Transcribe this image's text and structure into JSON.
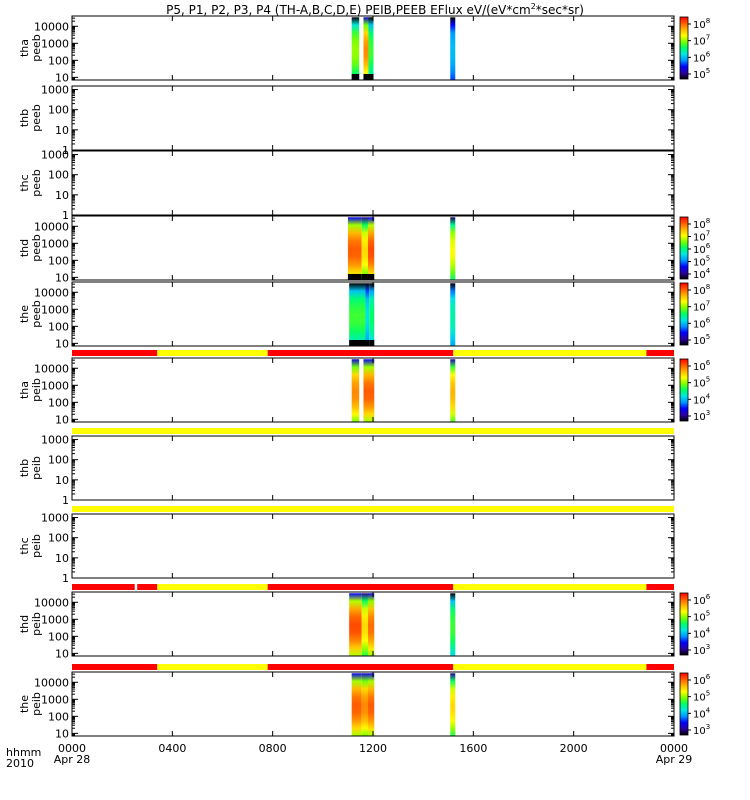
{
  "title": "P5, P1, P2, P3, P4 (TH-A,B,C,D,E) PEIB,PEEB EFlux eV/(eV*cm",
  "title_sup": "2",
  "title_tail": "*sec*sr)",
  "chart_data": {
    "type": "heatmap",
    "time_axis": {
      "row_label_top": "hhmm",
      "row_label_bottom": "2010",
      "range_hours": [
        0,
        24
      ],
      "ticks": [
        {
          "hour": 0,
          "label": "0000",
          "sub": "Apr 28"
        },
        {
          "hour": 4,
          "label": "0400",
          "sub": ""
        },
        {
          "hour": 8,
          "label": "0800",
          "sub": ""
        },
        {
          "hour": 12,
          "label": "1200",
          "sub": ""
        },
        {
          "hour": 16,
          "label": "1600",
          "sub": ""
        },
        {
          "hour": 20,
          "label": "2000",
          "sub": ""
        },
        {
          "hour": 24,
          "label": "0000",
          "sub": "Apr 29"
        }
      ]
    },
    "colormap": [
      "#000000",
      "#2b00a6",
      "#0000ff",
      "#0096ff",
      "#00e6e6",
      "#00ff64",
      "#7dff00",
      "#ffff00",
      "#ffb400",
      "#ff5a00",
      "#ff0000"
    ],
    "mode_bar_colors": {
      "fast": "#ff0000",
      "slow": "#ffff00"
    },
    "panels": [
      {
        "id": "tha-peeb",
        "label_line1": "tha",
        "label_line2": "peeb",
        "yrange": [
          7,
          40000
        ],
        "yticks": [
          {
            "v": 10,
            "label": "10"
          },
          {
            "v": 100,
            "label": "100"
          },
          {
            "v": 1000,
            "label": "1000"
          },
          {
            "v": 10000,
            "label": "10000"
          }
        ],
        "colorbar": {
          "labels": [
            "10",
            "10",
            "10",
            "10"
          ],
          "exponents": [
            "8",
            "7",
            "6",
            "5"
          ]
        },
        "mode_bar": null,
        "spectra": [
          {
            "t0": 11.15,
            "t1": 11.45,
            "top": 0.98,
            "intensity": 0.62,
            "lowband": true
          },
          {
            "t0": 11.62,
            "t1": 11.82,
            "top": 0.98,
            "intensity": 0.85,
            "lowband": true
          },
          {
            "t0": 11.82,
            "t1": 12.02,
            "top": 0.98,
            "intensity": 0.55,
            "lowband": true
          },
          {
            "t0": 15.08,
            "t1": 15.28,
            "top": 0.98,
            "intensity": 0.35,
            "lowband": false
          }
        ]
      },
      {
        "id": "thb-peeb",
        "label_line1": "thb",
        "label_line2": "peeb",
        "yrange": [
          1,
          1500
        ],
        "yticks": [
          {
            "v": 1,
            "label": "1"
          },
          {
            "v": 10,
            "label": "10"
          },
          {
            "v": 100,
            "label": "100"
          },
          {
            "v": 1000,
            "label": "1000"
          }
        ],
        "colorbar": null,
        "mode_bar": null,
        "spectra": []
      },
      {
        "id": "thc-peeb",
        "label_line1": "thc",
        "label_line2": "peeb",
        "yrange": [
          1,
          1500
        ],
        "yticks": [
          {
            "v": 1,
            "label": "1"
          },
          {
            "v": 10,
            "label": "10"
          },
          {
            "v": 100,
            "label": "100"
          },
          {
            "v": 1000,
            "label": "1000"
          }
        ],
        "colorbar": null,
        "mode_bar": null,
        "spectra": []
      },
      {
        "id": "thd-peeb",
        "label_line1": "thd",
        "label_line2": "peeb",
        "yrange": [
          7,
          40000
        ],
        "yticks": [
          {
            "v": 10,
            "label": "10"
          },
          {
            "v": 100,
            "label": "100"
          },
          {
            "v": 1000,
            "label": "1000"
          },
          {
            "v": 10000,
            "label": "10000"
          }
        ],
        "colorbar": {
          "labels": [
            "10",
            "10",
            "10",
            "10",
            "10"
          ],
          "exponents": [
            "8",
            "7",
            "6",
            "5",
            "4"
          ]
        },
        "mode_bar": null,
        "spectra": [
          {
            "t0": 11.0,
            "t1": 11.55,
            "top": 0.98,
            "intensity": 0.9,
            "lowband": true
          },
          {
            "t0": 11.55,
            "t1": 11.8,
            "top": 0.98,
            "intensity": 0.75,
            "lowband": true
          },
          {
            "t0": 11.8,
            "t1": 12.05,
            "top": 0.98,
            "intensity": 0.92,
            "lowband": true
          },
          {
            "t0": 15.08,
            "t1": 15.28,
            "top": 0.98,
            "intensity": 0.7,
            "lowband": false
          }
        ]
      },
      {
        "id": "the-peeb",
        "label_line1": "the",
        "label_line2": "peeb",
        "yrange": [
          7,
          40000
        ],
        "yticks": [
          {
            "v": 10,
            "label": "10"
          },
          {
            "v": 100,
            "label": "100"
          },
          {
            "v": 1000,
            "label": "1000"
          },
          {
            "v": 10000,
            "label": "10000"
          }
        ],
        "colorbar": {
          "labels": [
            "10",
            "10",
            "10",
            "10"
          ],
          "exponents": [
            "8",
            "7",
            "6",
            "5"
          ]
        },
        "mode_bar": null,
        "spectra": [
          {
            "t0": 11.05,
            "t1": 11.7,
            "top": 0.98,
            "intensity": 0.55,
            "lowband": true
          },
          {
            "t0": 11.7,
            "t1": 11.85,
            "top": 0.98,
            "intensity": 0.4,
            "lowband": true
          },
          {
            "t0": 11.85,
            "t1": 12.05,
            "top": 0.98,
            "intensity": 0.5,
            "lowband": true
          },
          {
            "t0": 15.08,
            "t1": 15.28,
            "top": 0.98,
            "intensity": 0.45,
            "lowband": false
          }
        ]
      },
      {
        "id": "tha-peib",
        "label_line1": "tha",
        "label_line2": "peib",
        "yrange": [
          7,
          40000
        ],
        "yticks": [
          {
            "v": 10,
            "label": "10"
          },
          {
            "v": 100,
            "label": "100"
          },
          {
            "v": 1000,
            "label": "1000"
          },
          {
            "v": 10000,
            "label": "10000"
          }
        ],
        "colorbar": {
          "labels": [
            "10",
            "10",
            "10",
            "10"
          ],
          "exponents": [
            "6",
            "5",
            "4",
            "3"
          ]
        },
        "mode_bar": [
          {
            "t0": 0,
            "t1": 3.4,
            "mode": "fast"
          },
          {
            "t0": 3.4,
            "t1": 7.8,
            "mode": "slow"
          },
          {
            "t0": 7.8,
            "t1": 15.2,
            "mode": "fast"
          },
          {
            "t0": 15.2,
            "t1": 22.9,
            "mode": "slow"
          },
          {
            "t0": 22.9,
            "t1": 24,
            "mode": "fast"
          }
        ],
        "spectra": [
          {
            "t0": 11.15,
            "t1": 11.45,
            "top": 0.98,
            "intensity": 0.85,
            "lowband": false
          },
          {
            "t0": 11.62,
            "t1": 12.05,
            "top": 0.98,
            "intensity": 0.9,
            "lowband": false
          },
          {
            "t0": 15.08,
            "t1": 15.28,
            "top": 0.98,
            "intensity": 0.8,
            "lowband": false
          }
        ]
      },
      {
        "id": "thb-peib",
        "label_line1": "thb",
        "label_line2": "peib",
        "yrange": [
          1,
          1500
        ],
        "yticks": [
          {
            "v": 1,
            "label": "1"
          },
          {
            "v": 10,
            "label": "10"
          },
          {
            "v": 100,
            "label": "100"
          },
          {
            "v": 1000,
            "label": "1000"
          }
        ],
        "colorbar": null,
        "mode_bar": [
          {
            "t0": 0,
            "t1": 24,
            "mode": "slow"
          }
        ],
        "spectra": []
      },
      {
        "id": "thc-peib",
        "label_line1": "thc",
        "label_line2": "peib",
        "yrange": [
          1,
          1500
        ],
        "yticks": [
          {
            "v": 1,
            "label": "1"
          },
          {
            "v": 10,
            "label": "10"
          },
          {
            "v": 100,
            "label": "100"
          },
          {
            "v": 1000,
            "label": "1000"
          }
        ],
        "colorbar": null,
        "mode_bar": [
          {
            "t0": 0,
            "t1": 24,
            "mode": "slow"
          }
        ],
        "spectra": []
      },
      {
        "id": "thd-peib",
        "label_line1": "thd",
        "label_line2": "peib",
        "yrange": [
          7,
          40000
        ],
        "yticks": [
          {
            "v": 10,
            "label": "10"
          },
          {
            "v": 100,
            "label": "100"
          },
          {
            "v": 1000,
            "label": "1000"
          },
          {
            "v": 10000,
            "label": "10000"
          }
        ],
        "colorbar": {
          "labels": [
            "10",
            "10",
            "10",
            "10"
          ],
          "exponents": [
            "6",
            "5",
            "4",
            "3"
          ]
        },
        "mode_bar": [
          {
            "t0": 0,
            "t1": 2.5,
            "mode": "fast"
          },
          {
            "t0": 2.6,
            "t1": 3.4,
            "mode": "fast"
          },
          {
            "t0": 3.4,
            "t1": 7.8,
            "mode": "slow"
          },
          {
            "t0": 7.8,
            "t1": 15.2,
            "mode": "fast"
          },
          {
            "t0": 15.2,
            "t1": 22.9,
            "mode": "slow"
          },
          {
            "t0": 22.9,
            "t1": 24,
            "mode": "fast"
          }
        ],
        "spectra": [
          {
            "t0": 11.05,
            "t1": 11.55,
            "top": 0.98,
            "intensity": 0.92,
            "lowband": false
          },
          {
            "t0": 11.55,
            "t1": 11.8,
            "top": 0.98,
            "intensity": 0.75,
            "lowband": false
          },
          {
            "t0": 11.8,
            "t1": 12.05,
            "top": 0.98,
            "intensity": 0.88,
            "lowband": false
          },
          {
            "t0": 15.08,
            "t1": 15.28,
            "top": 0.98,
            "intensity": 0.55,
            "lowband": false
          }
        ]
      },
      {
        "id": "the-peib",
        "label_line1": "the",
        "label_line2": "peib",
        "yrange": [
          7,
          40000
        ],
        "yticks": [
          {
            "v": 10,
            "label": "10"
          },
          {
            "v": 100,
            "label": "100"
          },
          {
            "v": 1000,
            "label": "1000"
          },
          {
            "v": 10000,
            "label": "10000"
          }
        ],
        "colorbar": {
          "labels": [
            "10",
            "10",
            "10",
            "10"
          ],
          "exponents": [
            "6",
            "5",
            "4",
            "3"
          ]
        },
        "mode_bar": [
          {
            "t0": 0,
            "t1": 3.4,
            "mode": "fast"
          },
          {
            "t0": 3.4,
            "t1": 7.8,
            "mode": "slow"
          },
          {
            "t0": 7.8,
            "t1": 15.2,
            "mode": "fast"
          },
          {
            "t0": 15.2,
            "t1": 22.9,
            "mode": "slow"
          },
          {
            "t0": 22.9,
            "t1": 24,
            "mode": "fast"
          }
        ],
        "spectra": [
          {
            "t0": 11.15,
            "t1": 11.55,
            "top": 0.98,
            "intensity": 0.9,
            "lowband": false
          },
          {
            "t0": 11.55,
            "t1": 11.8,
            "top": 0.98,
            "intensity": 0.85,
            "lowband": false
          },
          {
            "t0": 11.8,
            "t1": 12.05,
            "top": 0.98,
            "intensity": 0.9,
            "lowband": false
          },
          {
            "t0": 15.08,
            "t1": 15.28,
            "top": 0.98,
            "intensity": 0.75,
            "lowband": false
          }
        ]
      }
    ]
  }
}
